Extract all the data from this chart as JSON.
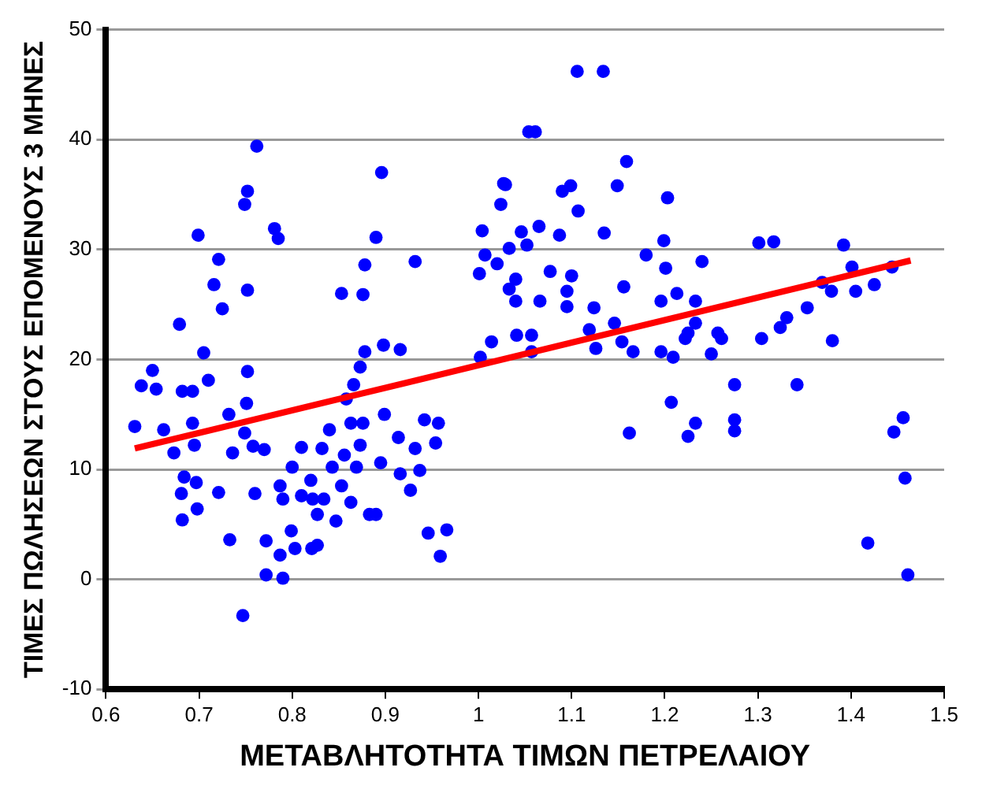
{
  "chart_data": {
    "type": "scatter",
    "xlabel": "ΜΕΤΑΒΛΗΤΟΤΗΤΑ ΤΙΜΩΝ ΠΕΤΡΕΛΑΙΟΥ",
    "ylabel": "ΤΙΜΕΣ ΠΩΛΗΣΕΩΝ ΣΤΟΥΣ ΕΠΟΜΕΝΟΥΣ 3 ΜΗΝΕΣ",
    "xlim": [
      0.6,
      1.5
    ],
    "xticks": [
      0.6,
      0.7,
      0.8,
      0.9,
      1.0,
      1.1,
      1.2,
      1.3,
      1.4,
      1.5
    ],
    "ylim": [
      -10,
      50
    ],
    "yticks": [
      -10,
      0,
      10,
      20,
      30,
      40,
      50
    ],
    "grid": "y",
    "marker": "circle",
    "legend": false,
    "series": [
      {
        "color": "#0000ff",
        "x": [
          0.631,
          0.638,
          0.65,
          0.654,
          0.662,
          0.673,
          0.679,
          0.682,
          0.693,
          0.684,
          0.681,
          0.697,
          0.682,
          0.698,
          0.693,
          0.695,
          0.699,
          0.705,
          0.71,
          0.716,
          0.721,
          0.725,
          0.721,
          0.732,
          0.736,
          0.733,
          0.747,
          0.749,
          0.752,
          0.762,
          0.752,
          0.752,
          0.751,
          0.749,
          0.758,
          0.77,
          0.76,
          0.772,
          0.772,
          0.79,
          0.781,
          0.785,
          0.787,
          0.799,
          0.803,
          0.821,
          0.827,
          0.81,
          0.787,
          0.79,
          0.8,
          0.81,
          0.82,
          0.822,
          0.827,
          0.834,
          0.832,
          0.84,
          0.843,
          0.847,
          0.853,
          0.856,
          0.863,
          0.863,
          0.858,
          0.866,
          0.873,
          0.878,
          0.876,
          0.873,
          0.869,
          0.853,
          0.876,
          0.878,
          0.89,
          0.896,
          0.883,
          0.89,
          0.895,
          0.899,
          0.898,
          0.916,
          0.914,
          0.916,
          0.927,
          0.932,
          0.937,
          0.932,
          0.942,
          0.957,
          0.954,
          0.946,
          0.966,
          0.959,
          1.002,
          1.014,
          1.004,
          1.001,
          1.027,
          1.024,
          1.007,
          1.054,
          1.033,
          1.04,
          1.02,
          1.046,
          1.033,
          1.057,
          1.106,
          1.134,
          1.061,
          1.159,
          1.029,
          1.09,
          1.099,
          1.149,
          1.107,
          1.203,
          1.065,
          1.087,
          1.052,
          1.135,
          1.199,
          1.18,
          1.201,
          1.24,
          1.301,
          1.317,
          1.392,
          1.401,
          1.444,
          1.1,
          1.077,
          1.04,
          1.095,
          1.066,
          1.156,
          1.213,
          1.196,
          1.233,
          1.124,
          1.095,
          1.146,
          1.119,
          1.126,
          1.154,
          1.166,
          1.196,
          1.209,
          1.222,
          1.233,
          1.225,
          1.257,
          1.261,
          1.25,
          1.041,
          1.057,
          1.304,
          1.324,
          1.331,
          1.353,
          1.369,
          1.379,
          1.405,
          1.425,
          1.38,
          1.275,
          1.342,
          1.207,
          1.233,
          1.225,
          1.275,
          1.275,
          1.162,
          1.456,
          1.446,
          1.458,
          1.418,
          1.461
        ],
        "values": [
          13.9,
          17.6,
          19.0,
          17.3,
          13.6,
          11.5,
          23.2,
          17.1,
          17.1,
          9.3,
          7.8,
          8.8,
          5.4,
          6.4,
          14.2,
          12.2,
          31.3,
          20.6,
          18.1,
          26.8,
          29.1,
          24.6,
          7.9,
          15.0,
          11.5,
          3.6,
          -3.3,
          34.1,
          35.3,
          39.4,
          26.3,
          18.9,
          16.0,
          13.3,
          12.1,
          11.8,
          7.8,
          3.5,
          0.4,
          0.1,
          31.9,
          31.0,
          2.2,
          4.4,
          2.8,
          2.8,
          3.1,
          12.0,
          8.5,
          7.3,
          10.2,
          7.6,
          9.0,
          7.3,
          5.9,
          7.3,
          11.9,
          13.6,
          10.2,
          5.3,
          8.5,
          11.3,
          14.2,
          7.0,
          16.4,
          17.7,
          19.3,
          20.7,
          14.2,
          12.2,
          10.2,
          26.0,
          25.9,
          28.6,
          31.1,
          37.0,
          5.9,
          5.9,
          10.6,
          15.0,
          21.3,
          20.9,
          12.9,
          9.6,
          8.1,
          11.9,
          9.9,
          28.9,
          14.5,
          14.2,
          12.4,
          4.2,
          4.5,
          2.1,
          20.2,
          21.6,
          31.7,
          27.8,
          36.0,
          34.1,
          29.5,
          40.7,
          26.4,
          25.3,
          28.7,
          31.6,
          30.1,
          22.2,
          46.2,
          46.2,
          40.7,
          38.0,
          35.9,
          35.3,
          35.8,
          35.8,
          33.5,
          34.7,
          32.1,
          31.3,
          30.4,
          31.5,
          30.8,
          29.5,
          28.3,
          28.9,
          30.6,
          30.7,
          30.4,
          28.4,
          28.4,
          27.6,
          28.0,
          27.3,
          26.2,
          25.3,
          26.6,
          26.0,
          25.3,
          25.3,
          24.7,
          24.8,
          23.3,
          22.7,
          21.0,
          21.6,
          20.7,
          20.7,
          20.2,
          21.9,
          23.3,
          22.4,
          22.4,
          21.9,
          20.5,
          22.2,
          20.7,
          21.9,
          22.9,
          23.8,
          24.7,
          27.0,
          26.2,
          26.2,
          26.8,
          21.7,
          17.7,
          17.7,
          16.1,
          14.2,
          13.0,
          14.5,
          13.5,
          13.3,
          14.7,
          13.4,
          9.2,
          3.3,
          0.4
        ]
      },
      {
        "type": "line",
        "color": "#ff0000",
        "marker": "none",
        "x": [
          0.631,
          1.464
        ],
        "values": [
          11.9,
          29.0
        ]
      }
    ]
  }
}
